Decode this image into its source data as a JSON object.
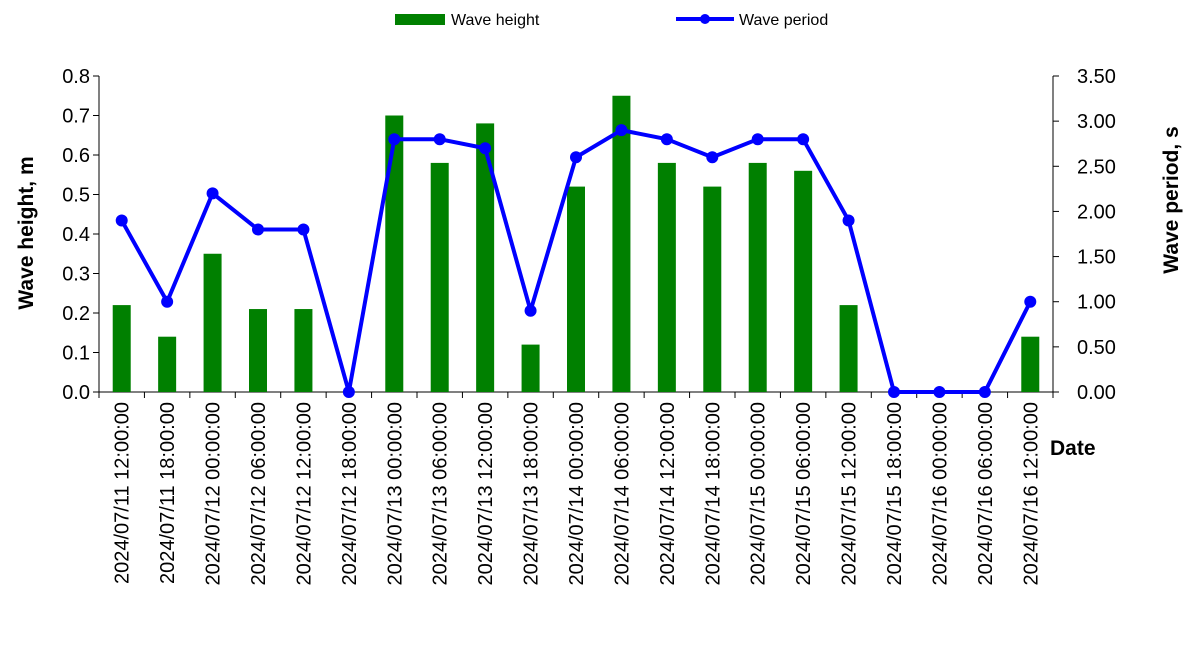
{
  "chart_data": {
    "type": "bar",
    "categories": [
      "2024/07/11 12:00:00",
      "2024/07/11 18:00:00",
      "2024/07/12 00:00:00",
      "2024/07/12 06:00:00",
      "2024/07/12 12:00:00",
      "2024/07/12 18:00:00",
      "2024/07/13 00:00:00",
      "2024/07/13 06:00:00",
      "2024/07/13 12:00:00",
      "2024/07/13 18:00:00",
      "2024/07/14 00:00:00",
      "2024/07/14 06:00:00",
      "2024/07/14 12:00:00",
      "2024/07/14 18:00:00",
      "2024/07/15 00:00:00",
      "2024/07/15 06:00:00",
      "2024/07/15 12:00:00",
      "2024/07/15 18:00:00",
      "2024/07/16 00:00:00",
      "2024/07/16 06:00:00",
      "2024/07/16 12:00:00"
    ],
    "series": [
      {
        "name": "Wave height",
        "type": "bar",
        "axis": "left",
        "color": "#008000",
        "values": [
          0.22,
          0.14,
          0.35,
          0.21,
          0.21,
          0.0,
          0.7,
          0.58,
          0.68,
          0.12,
          0.52,
          0.75,
          0.58,
          0.52,
          0.58,
          0.56,
          0.22,
          0.0,
          0.0,
          0.0,
          0.14
        ]
      },
      {
        "name": "Wave period",
        "type": "line",
        "axis": "right",
        "color": "#0000ff",
        "values": [
          1.9,
          1.0,
          2.2,
          1.8,
          1.8,
          0.0,
          2.8,
          2.8,
          2.7,
          0.9,
          2.6,
          2.9,
          2.8,
          2.6,
          2.8,
          2.8,
          1.9,
          0.0,
          0.0,
          0.0,
          1.0
        ]
      }
    ],
    "xlabel": "Date",
    "ylabel": "Wave height, m",
    "y2label": "Wave period, s",
    "ylim": [
      0,
      0.8
    ],
    "y2lim": [
      0,
      3.5
    ],
    "yticks": [
      "0.0",
      "0.1",
      "0.2",
      "0.3",
      "0.4",
      "0.5",
      "0.6",
      "0.7",
      "0.8"
    ],
    "y2ticks": [
      "0.00",
      "0.50",
      "1.00",
      "1.50",
      "2.00",
      "2.50",
      "3.00",
      "3.50"
    ],
    "legend_position": "top-center",
    "grid": false
  }
}
